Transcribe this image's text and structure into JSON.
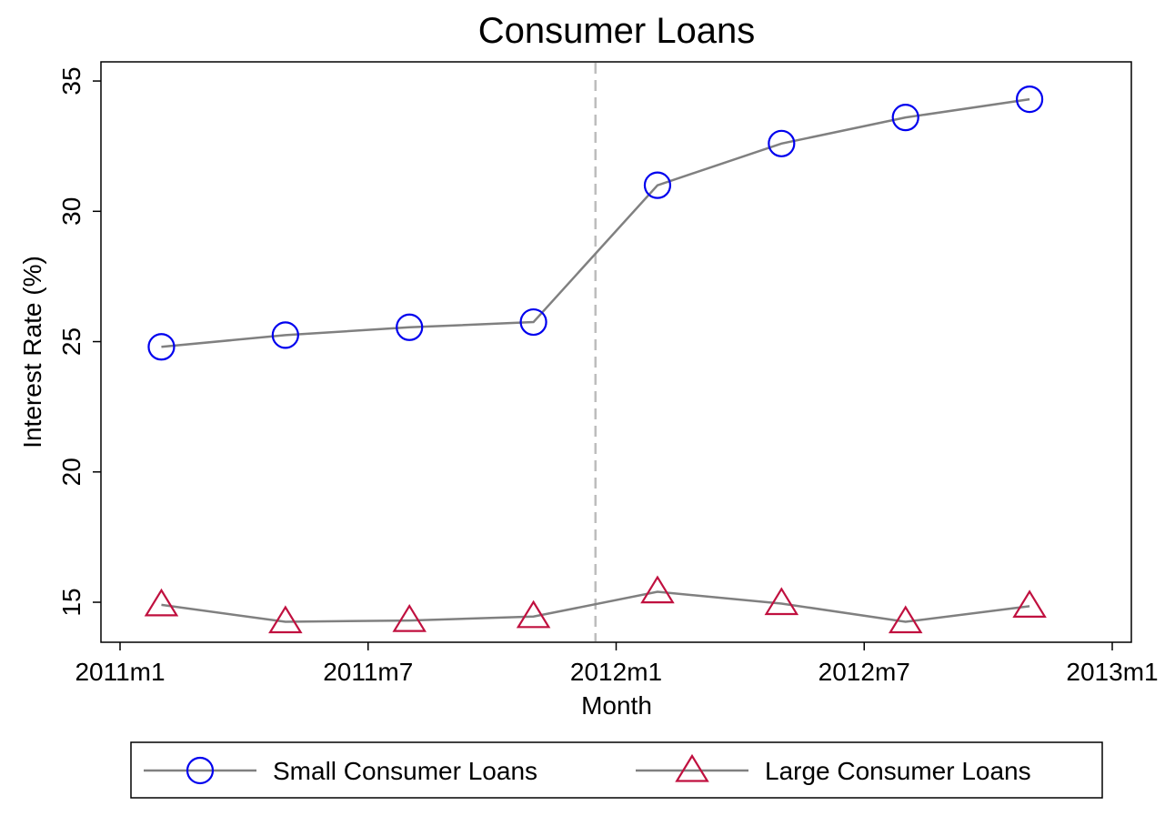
{
  "chart_data": {
    "type": "line",
    "title": "Consumer Loans",
    "xlabel": "Month",
    "ylabel": "Interest Rate (%)",
    "xlim": [
      "2011m1",
      "2013m1"
    ],
    "ylim": [
      13.5,
      35.7
    ],
    "x_ticks": [
      {
        "label": "2011m1",
        "value": 0
      },
      {
        "label": "2011m7",
        "value": 6
      },
      {
        "label": "2012m1",
        "value": 12
      },
      {
        "label": "2012m7",
        "value": 18
      },
      {
        "label": "2013m1",
        "value": 24
      }
    ],
    "y_ticks": [
      15,
      20,
      25,
      30,
      35
    ],
    "x": [
      "2011m2",
      "2011m5",
      "2011m8",
      "2011m11",
      "2012m2",
      "2012m5",
      "2012m8",
      "2012m11"
    ],
    "x_index": [
      1,
      4,
      7,
      10,
      13,
      16,
      19,
      22
    ],
    "reference_line": {
      "x": "2011m12",
      "x_index": 11.5,
      "style": "dashed",
      "color": "#bdbdbd"
    },
    "series": [
      {
        "name": "Small Consumer Loans",
        "marker": "circle",
        "line_color": "#808080",
        "marker_color": "#0000ee",
        "values": [
          24.8,
          25.25,
          25.55,
          25.75,
          31.0,
          32.6,
          33.6,
          34.3
        ]
      },
      {
        "name": "Large Consumer Loans",
        "marker": "triangle",
        "line_color": "#808080",
        "marker_color": "#c0103f",
        "values": [
          14.9,
          14.25,
          14.3,
          14.45,
          15.4,
          14.95,
          14.25,
          14.85
        ]
      }
    ],
    "grid": false,
    "legend_position": "bottom"
  }
}
